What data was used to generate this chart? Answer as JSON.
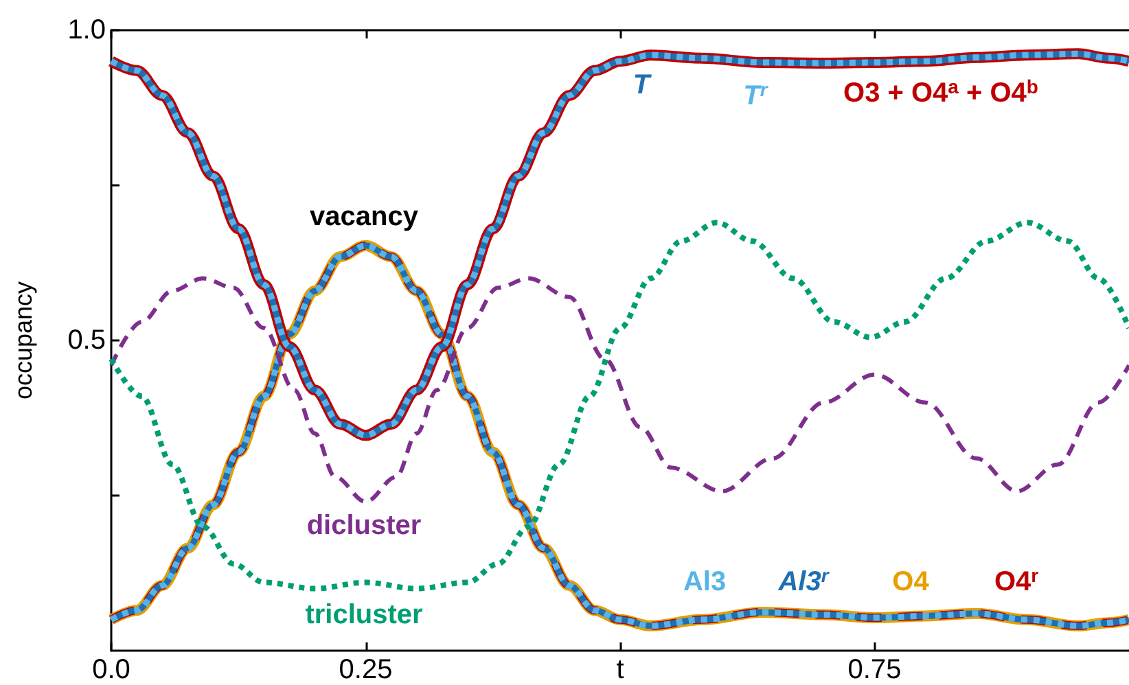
{
  "chart_data": {
    "type": "line",
    "ylabel": "occupancy",
    "xlim": [
      0,
      1
    ],
    "ylim": [
      0,
      1
    ],
    "xticks": [
      {
        "value": 0,
        "label": "0.0"
      },
      0.25,
      {
        "value": 0.5,
        "label": "t"
      },
      0.75
    ],
    "yticks": [
      {
        "value": 0.25,
        "label": null
      },
      {
        "value": 0.5,
        "label": "0.5"
      },
      {
        "value": 0.75,
        "label": null
      },
      {
        "value": 1,
        "label": "1.0"
      }
    ],
    "grid": false,
    "marker": "none",
    "annotations": [
      "vacancy"
    ],
    "x": [
      0,
      0.025,
      0.05,
      0.075,
      0.1,
      0.125,
      0.15,
      0.175,
      0.2,
      0.225,
      0.25,
      0.275,
      0.3,
      0.325,
      0.35,
      0.375,
      0.4,
      0.425,
      0.45,
      0.475,
      0.5,
      0.53,
      0.58,
      0.64,
      0.7,
      0.75,
      0.8,
      0.85,
      0.9,
      0.95,
      0.98,
      1
    ],
    "series": [
      {
        "name": "O3 + O4$^{a}$ + O4$^{b}$",
        "color": "#c00000",
        "line_style": "solid",
        "values": [
          0.95,
          0.935,
          0.895,
          0.835,
          0.765,
          0.68,
          0.59,
          0.49,
          0.42,
          0.365,
          0.347,
          0.365,
          0.42,
          0.49,
          0.59,
          0.68,
          0.765,
          0.835,
          0.895,
          0.935,
          0.95,
          0.96,
          0.955,
          0.948,
          0.947,
          0.948,
          0.95,
          0.956,
          0.96,
          0.962,
          0.955,
          0.95
        ]
      },
      {
        "name": "T",
        "color": "#1f6fb2",
        "line_style": "solid",
        "values": [
          0.95,
          0.935,
          0.895,
          0.835,
          0.765,
          0.68,
          0.59,
          0.49,
          0.42,
          0.365,
          0.347,
          0.365,
          0.42,
          0.49,
          0.59,
          0.68,
          0.765,
          0.835,
          0.895,
          0.935,
          0.95,
          0.96,
          0.955,
          0.948,
          0.947,
          0.948,
          0.95,
          0.956,
          0.96,
          0.962,
          0.955,
          0.95
        ]
      },
      {
        "name": "T$^{r}$",
        "color": "#56b4e9",
        "line_style": "dotted",
        "values": [
          0.95,
          0.935,
          0.895,
          0.835,
          0.765,
          0.68,
          0.59,
          0.49,
          0.42,
          0.365,
          0.347,
          0.365,
          0.42,
          0.49,
          0.59,
          0.68,
          0.765,
          0.835,
          0.895,
          0.935,
          0.95,
          0.96,
          0.955,
          0.948,
          0.947,
          0.948,
          0.95,
          0.956,
          0.96,
          0.962,
          0.955,
          0.95
        ]
      },
      {
        "name": "O4",
        "color": "#e69f00",
        "line_style": "solid",
        "values": [
          0.05,
          0.065,
          0.105,
          0.165,
          0.235,
          0.32,
          0.41,
          0.51,
          0.58,
          0.635,
          0.653,
          0.635,
          0.58,
          0.51,
          0.41,
          0.32,
          0.235,
          0.165,
          0.105,
          0.065,
          0.05,
          0.04,
          0.05,
          0.062,
          0.058,
          0.053,
          0.056,
          0.06,
          0.05,
          0.04,
          0.045,
          0.05
        ]
      },
      {
        "name": "O4$^{r}$",
        "color": "#c00000",
        "line_style": "dashed",
        "values": [
          0.05,
          0.065,
          0.105,
          0.165,
          0.235,
          0.32,
          0.41,
          0.51,
          0.58,
          0.635,
          0.653,
          0.635,
          0.58,
          0.51,
          0.41,
          0.32,
          0.235,
          0.165,
          0.105,
          0.065,
          0.05,
          0.04,
          0.05,
          0.062,
          0.058,
          0.053,
          0.056,
          0.06,
          0.05,
          0.04,
          0.045,
          0.05
        ]
      },
      {
        "name": "Al3$^{r}$",
        "color": "#1f6fb2",
        "line_style": "solid",
        "values": [
          0.05,
          0.065,
          0.105,
          0.165,
          0.235,
          0.32,
          0.41,
          0.51,
          0.58,
          0.635,
          0.653,
          0.635,
          0.58,
          0.51,
          0.41,
          0.32,
          0.235,
          0.165,
          0.105,
          0.065,
          0.05,
          0.04,
          0.05,
          0.062,
          0.058,
          0.053,
          0.056,
          0.06,
          0.05,
          0.04,
          0.045,
          0.05
        ]
      },
      {
        "name": "Al3",
        "color": "#56b4e9",
        "line_style": "dotted",
        "values": [
          0.05,
          0.065,
          0.105,
          0.165,
          0.235,
          0.32,
          0.41,
          0.51,
          0.58,
          0.635,
          0.653,
          0.635,
          0.58,
          0.51,
          0.41,
          0.32,
          0.235,
          0.165,
          0.105,
          0.065,
          0.05,
          0.04,
          0.05,
          0.062,
          0.058,
          0.053,
          0.056,
          0.06,
          0.05,
          0.04,
          0.045,
          0.05
        ]
      },
      {
        "name": "dicluster",
        "color": "#7e2f8e",
        "line_style": "dashed",
        "x": [
          0,
          0.03,
          0.06,
          0.09,
          0.12,
          0.15,
          0.18,
          0.2,
          0.22,
          0.25,
          0.28,
          0.3,
          0.32,
          0.35,
          0.38,
          0.41,
          0.45,
          0.485,
          0.52,
          0.55,
          0.6,
          0.65,
          0.7,
          0.75,
          0.8,
          0.85,
          0.89,
          0.93,
          0.97,
          1
        ],
        "values": [
          0.46,
          0.53,
          0.58,
          0.6,
          0.585,
          0.52,
          0.42,
          0.35,
          0.28,
          0.24,
          0.28,
          0.35,
          0.42,
          0.52,
          0.585,
          0.6,
          0.57,
          0.47,
          0.36,
          0.295,
          0.257,
          0.31,
          0.4,
          0.445,
          0.4,
          0.31,
          0.257,
          0.3,
          0.4,
          0.46
        ]
      },
      {
        "name": "tricluster",
        "color": "#009e73",
        "line_style": "dotted",
        "x": [
          0,
          0.03,
          0.06,
          0.09,
          0.12,
          0.15,
          0.2,
          0.25,
          0.3,
          0.35,
          0.38,
          0.41,
          0.44,
          0.47,
          0.5,
          0.53,
          0.56,
          0.595,
          0.63,
          0.67,
          0.71,
          0.746,
          0.78,
          0.82,
          0.86,
          0.9,
          0.94,
          0.97,
          1
        ],
        "values": [
          0.47,
          0.41,
          0.3,
          0.2,
          0.14,
          0.11,
          0.1,
          0.11,
          0.1,
          0.11,
          0.14,
          0.2,
          0.3,
          0.41,
          0.52,
          0.6,
          0.66,
          0.69,
          0.66,
          0.6,
          0.53,
          0.505,
          0.53,
          0.6,
          0.66,
          0.69,
          0.66,
          0.6,
          0.52
        ]
      }
    ]
  }
}
